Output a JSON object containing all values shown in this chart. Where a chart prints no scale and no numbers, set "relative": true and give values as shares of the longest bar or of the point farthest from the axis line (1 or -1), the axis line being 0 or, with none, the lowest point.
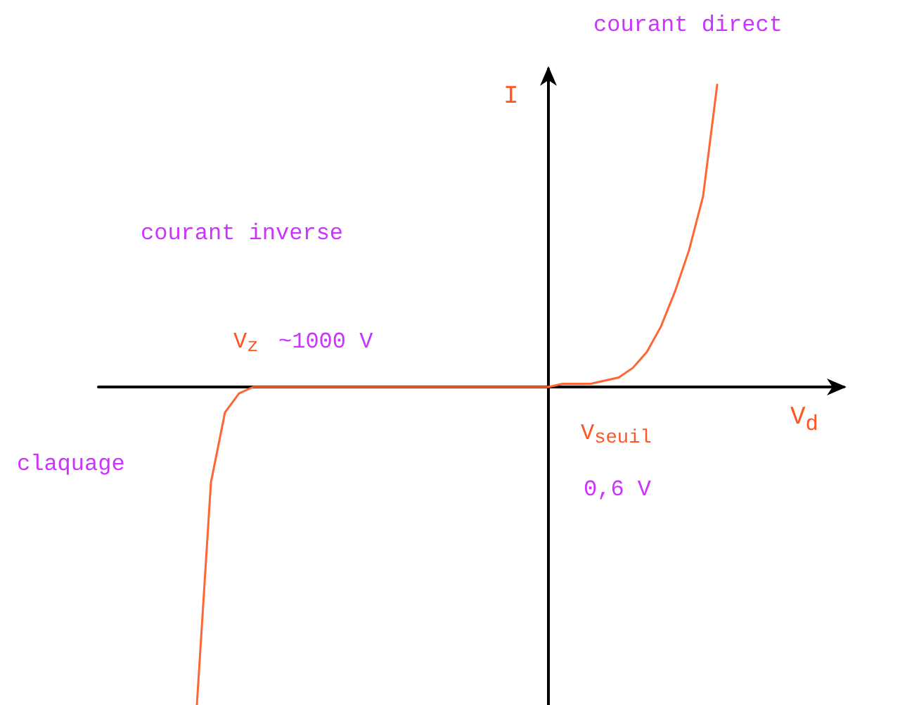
{
  "chart_data": {
    "type": "line",
    "relative": true,
    "xlabel": "V$_{d}$",
    "ylabel": "I",
    "categories": [
      null,
      null,
      null,
      null,
      null,
      null,
      null,
      null,
      null,
      null,
      null,
      null,
      null,
      null,
      null,
      null,
      null,
      null,
      null,
      null,
      null,
      null,
      null,
      null,
      null,
      null,
      null,
      null,
      null,
      null,
      null,
      null,
      null,
      null,
      null,
      null,
      null,
      null,
      null,
      null,
      null,
      null,
      null,
      null,
      null,
      null,
      null,
      null,
      null,
      null,
      null,
      null,
      null,
      null
    ],
    "series": [
      {
        "color": "#ff6633",
        "values": [
          null,
          null,
          null,
          null,
          null,
          null,
          null,
          -1,
          -0.3,
          -0.08,
          -0.02,
          0,
          0,
          0,
          0,
          0,
          0,
          0,
          0,
          0,
          0,
          0,
          0,
          0,
          0,
          0,
          0,
          0,
          0,
          0,
          0,
          0,
          0,
          0.01,
          0.01,
          0.01,
          0.02,
          0.03,
          0.06,
          0.11,
          0.19,
          0.3,
          0.43,
          0.6,
          0.95,
          null,
          null,
          null,
          null,
          null,
          null,
          null,
          null,
          null
        ]
      }
    ],
    "annotations": [
      "courant direct",
      "courant inverse",
      "V$_{z}$",
      "~1000 V",
      "claquage",
      "V$_{seuil}$",
      "0,6 V"
    ],
    "grid": false,
    "marker": "none",
    "line_style": "solid"
  }
}
